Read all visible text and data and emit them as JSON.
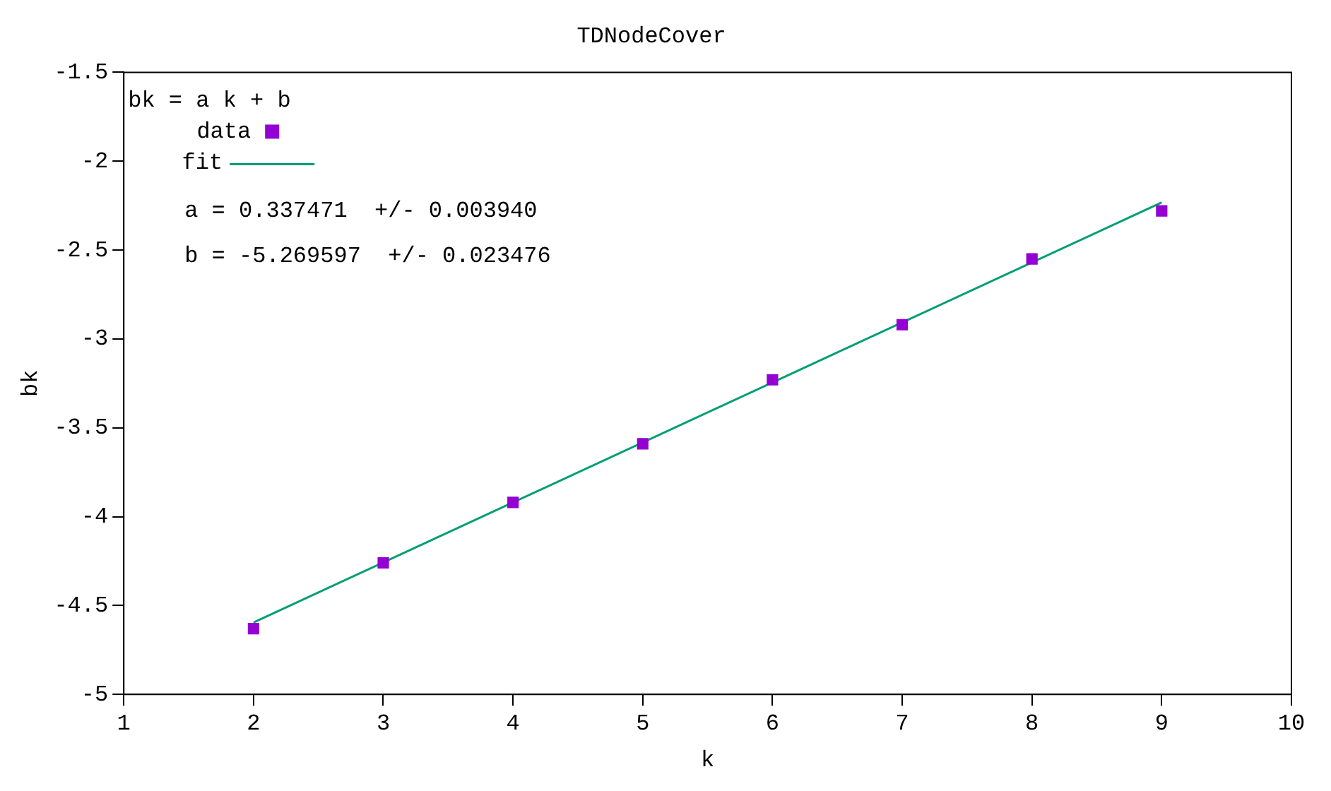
{
  "chart_data": {
    "type": "scatter",
    "title": "TDNodeCover",
    "xlabel": "k",
    "ylabel": "bk",
    "legend_title": "bk = a k + b",
    "legend": "top left",
    "x": [
      2,
      3,
      4,
      5,
      6,
      7,
      8,
      9
    ],
    "series": [
      {
        "name": "data",
        "marker": "square",
        "color": "#9400d3",
        "values": [
          -4.63,
          -4.26,
          -3.92,
          -3.59,
          -3.23,
          -2.92,
          -2.55,
          -2.28
        ]
      },
      {
        "name": "fit",
        "type": "line",
        "marker": "none",
        "color": "#009e73",
        "x": [
          2,
          9
        ],
        "values": [
          -4.595,
          -2.232
        ]
      }
    ],
    "xlim": [
      1,
      10
    ],
    "xticks": [
      1,
      2,
      3,
      4,
      5,
      6,
      7,
      8,
      9,
      10
    ],
    "ylim": [
      -5,
      -1.5
    ],
    "yticks": [
      -5,
      -4.5,
      -4,
      -3.5,
      -3,
      -2.5,
      -2,
      -1.5
    ],
    "annotations": [
      "a = 0.337471  +/- 0.003940",
      "b = -5.269597  +/- 0.023476"
    ]
  }
}
